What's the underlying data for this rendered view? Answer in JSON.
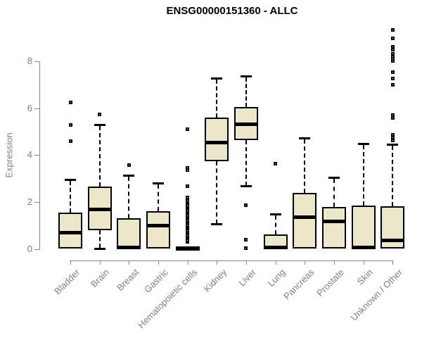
{
  "title": "ENSG00000151360 - ALLC",
  "colors": {
    "box_fill": "#ece7cb",
    "box_border": "#000000",
    "median": "#000000",
    "axis_line": "#868686",
    "axis_text": "#808080",
    "title_text": "#000000",
    "background": "#ffffff"
  },
  "chart_data": {
    "type": "boxplot",
    "title": "ENSG00000151360 - ALLC",
    "xlabel": "",
    "ylabel": "Expression",
    "ylim": [
      0,
      9.4
    ],
    "yticks": [
      0,
      2,
      4,
      6,
      8
    ],
    "grid": false,
    "legend": false,
    "categories": [
      "Bladder",
      "Brain",
      "Breast",
      "Gastric",
      "Hematopoietic cells",
      "Kidney",
      "Liver",
      "Lung",
      "Pancreas",
      "Prostate",
      "Skin",
      "Unknown / Other"
    ],
    "series": [
      {
        "name": "Bladder",
        "whislo": 0,
        "q1": 0,
        "med": 0.68,
        "q3": 1.55,
        "whishi": 2.95,
        "outliers": [
          4.6,
          5.3,
          6.25
        ]
      },
      {
        "name": "Brain",
        "whislo": 0,
        "q1": 0.8,
        "med": 1.68,
        "q3": 2.65,
        "whishi": 5.3,
        "outliers": [
          5.75
        ]
      },
      {
        "name": "Breast",
        "whislo": 0,
        "q1": 0,
        "med": 0.05,
        "q3": 1.3,
        "whishi": 3.15,
        "outliers": [
          3.57
        ]
      },
      {
        "name": "Gastric",
        "whislo": 0,
        "q1": 0,
        "med": 1.0,
        "q3": 1.6,
        "whishi": 2.82,
        "outliers": []
      },
      {
        "name": "Hematopoietic cells",
        "whislo": 0,
        "q1": 0,
        "med": 0.03,
        "q3": 0.05,
        "whishi": 0.05,
        "outliers": [
          0.3,
          0.37,
          0.44,
          0.51,
          0.58,
          0.65,
          0.72,
          0.79,
          0.86,
          0.93,
          1.0,
          1.07,
          1.14,
          1.21,
          1.28,
          1.35,
          1.42,
          1.49,
          1.56,
          1.63,
          1.7,
          1.77,
          1.84,
          1.91,
          1.98,
          2.05,
          2.12,
          2.2,
          2.67,
          3.38,
          3.47,
          5.12
        ]
      },
      {
        "name": "Kidney",
        "whislo": 1.05,
        "q1": 3.73,
        "med": 4.53,
        "q3": 5.6,
        "whishi": 7.3,
        "outliers": []
      },
      {
        "name": "Liver",
        "whislo": 2.65,
        "q1": 4.65,
        "med": 5.33,
        "q3": 6.05,
        "whishi": 7.38,
        "outliers": [
          1.85,
          0.4,
          0.03
        ]
      },
      {
        "name": "Lung",
        "whislo": 0,
        "q1": 0,
        "med": 0.05,
        "q3": 0.63,
        "whishi": 1.48,
        "outliers": [
          3.64
        ]
      },
      {
        "name": "Pancreas",
        "whislo": 0,
        "q1": 0,
        "med": 1.36,
        "q3": 2.4,
        "whishi": 4.74,
        "outliers": []
      },
      {
        "name": "Prostate",
        "whislo": 0,
        "q1": 0,
        "med": 1.17,
        "q3": 1.78,
        "whishi": 3.05,
        "outliers": []
      },
      {
        "name": "Skin",
        "whislo": 0,
        "q1": 0,
        "med": 0.05,
        "q3": 1.86,
        "whishi": 4.5,
        "outliers": []
      },
      {
        "name": "Unknown / Other",
        "whislo": 0,
        "q1": 0,
        "med": 0.36,
        "q3": 1.83,
        "whishi": 4.47,
        "outliers": [
          4.64,
          4.76,
          4.88,
          5.6,
          5.72,
          7.0,
          7.28,
          7.55,
          8.03,
          8.12,
          8.22,
          8.32,
          8.52,
          8.62,
          9.0,
          9.35
        ]
      }
    ]
  }
}
